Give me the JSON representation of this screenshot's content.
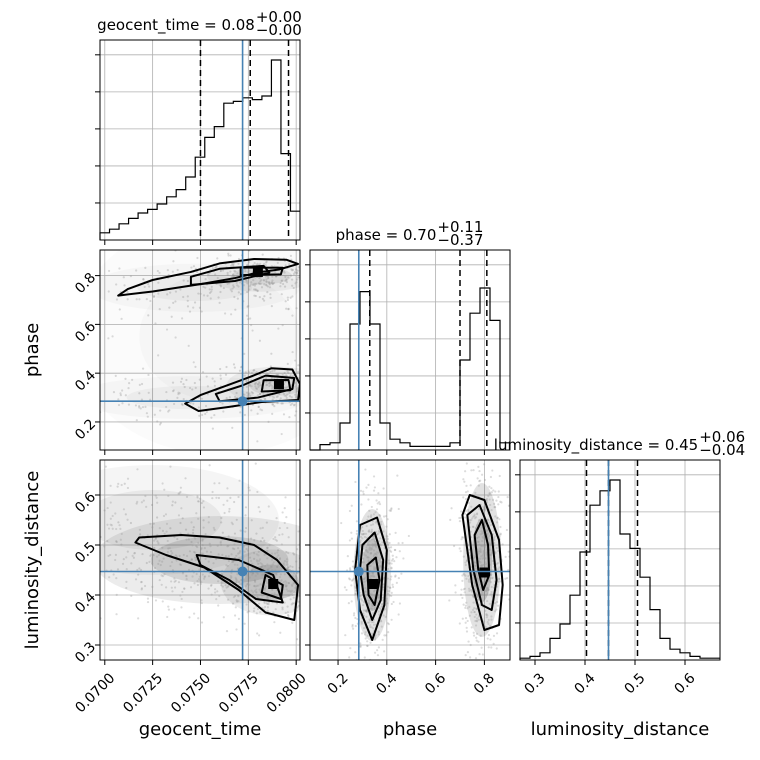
{
  "chart_data": {
    "type": "corner",
    "parameters": [
      {
        "name": "geocent_time",
        "axis_label": "geocent_time",
        "title_text": "geocent_time = 0.08",
        "title_sup": "+0.00",
        "title_sub": "−0.00",
        "range": [
          0.06975,
          0.0802
        ],
        "ticks": [
          0.07,
          0.0725,
          0.075,
          0.0775,
          0.08
        ],
        "tick_labels": [
          "0.0700",
          "0.0725",
          "0.0750",
          "0.0775",
          "0.0800"
        ],
        "truth": 0.0772,
        "quantiles": [
          0.075,
          0.0776,
          0.0796
        ],
        "hist": [
          0.04,
          0.06,
          0.09,
          0.12,
          0.15,
          0.17,
          0.2,
          0.24,
          0.28,
          0.35,
          0.46,
          0.57,
          0.63,
          0.76,
          0.77,
          0.79,
          0.78,
          0.8,
          1.0,
          0.48,
          0.16
        ]
      },
      {
        "name": "phase",
        "axis_label": "phase",
        "title_text": "phase = 0.70",
        "title_sup": "+0.11",
        "title_sub": "−0.37",
        "range": [
          0.085,
          0.905
        ],
        "ticks": [
          0.2,
          0.4,
          0.6,
          0.8
        ],
        "tick_labels": [
          "0.2",
          "0.4",
          "0.6",
          "0.8"
        ],
        "truth": 0.285,
        "quantiles": [
          0.33,
          0.7,
          0.81
        ],
        "hist": [
          0.0,
          0.03,
          0.04,
          0.15,
          0.7,
          0.88,
          0.7,
          0.15,
          0.06,
          0.04,
          0.02,
          0.02,
          0.02,
          0.02,
          0.04,
          0.5,
          0.76,
          0.9,
          0.72,
          0.04
        ]
      },
      {
        "name": "luminosity_distance",
        "axis_label": "luminosity_distance",
        "title_text": "luminosity_distance = 0.45",
        "title_sup": "+0.06",
        "title_sub": "−0.04",
        "range": [
          0.27,
          0.67
        ],
        "ticks": [
          0.3,
          0.4,
          0.5,
          0.6
        ],
        "tick_labels": [
          "0.3",
          "0.4",
          "0.5",
          "0.6"
        ],
        "truth": 0.447,
        "quantiles": [
          0.403,
          0.447,
          0.505
        ],
        "hist": [
          0.01,
          0.02,
          0.04,
          0.12,
          0.2,
          0.36,
          0.6,
          0.86,
          0.94,
          1.0,
          0.7,
          0.62,
          0.46,
          0.28,
          0.12,
          0.06,
          0.04,
          0.02,
          0.01,
          0.01
        ]
      }
    ],
    "density_blobs": {
      "phase_vs_geocent_time": [
        {
          "x": 0.0747,
          "y": 0.75,
          "sx": 0.0025,
          "sy": 0.045,
          "w": 0.1
        },
        {
          "x": 0.0782,
          "y": 0.8,
          "sx": 0.0013,
          "sy": 0.03,
          "w": 0.2
        },
        {
          "x": 0.0745,
          "y": 0.3,
          "sx": 0.0028,
          "sy": 0.04,
          "w": 0.1
        },
        {
          "x": 0.079,
          "y": 0.35,
          "sx": 0.0012,
          "sy": 0.035,
          "w": 0.2
        },
        {
          "x": 0.076,
          "y": 0.55,
          "sx": 0.0035,
          "sy": 0.22,
          "w": 0.06
        }
      ],
      "luminosity_distance_vs_geocent_time": [
        {
          "x": 0.076,
          "y": 0.47,
          "sx": 0.003,
          "sy": 0.04,
          "w": 0.3
        },
        {
          "x": 0.0787,
          "y": 0.425,
          "sx": 0.0012,
          "sy": 0.03,
          "w": 0.3
        },
        {
          "x": 0.0725,
          "y": 0.55,
          "sx": 0.003,
          "sy": 0.05,
          "w": 0.15
        }
      ],
      "luminosity_distance_vs_phase": [
        {
          "x": 0.34,
          "y": 0.44,
          "sx": 0.035,
          "sy": 0.06,
          "w": 0.45
        },
        {
          "x": 0.79,
          "y": 0.47,
          "sx": 0.035,
          "sy": 0.07,
          "w": 0.45
        }
      ]
    },
    "contours": {
      "phase_vs_geocent_time": [
        [
          [
            0.0707,
            0.718
          ],
          [
            0.0725,
            0.735
          ],
          [
            0.075,
            0.765
          ],
          [
            0.0768,
            0.79
          ],
          [
            0.078,
            0.813
          ],
          [
            0.0791,
            0.825
          ],
          [
            0.0801,
            0.848
          ],
          [
            0.0795,
            0.865
          ],
          [
            0.0778,
            0.868
          ],
          [
            0.076,
            0.85
          ],
          [
            0.0745,
            0.815
          ],
          [
            0.0725,
            0.782
          ],
          [
            0.0712,
            0.745
          ]
        ],
        [
          [
            0.0745,
            0.762
          ],
          [
            0.0768,
            0.778
          ],
          [
            0.0786,
            0.812
          ],
          [
            0.0783,
            0.84
          ],
          [
            0.076,
            0.828
          ],
          [
            0.0745,
            0.795
          ]
        ],
        [
          [
            0.0771,
            0.802
          ],
          [
            0.0792,
            0.805
          ],
          [
            0.0793,
            0.832
          ],
          [
            0.0771,
            0.833
          ]
        ],
        [
          [
            0.0749,
            0.245
          ],
          [
            0.0765,
            0.262
          ],
          [
            0.0782,
            0.282
          ],
          [
            0.0801,
            0.29
          ],
          [
            0.0802,
            0.355
          ],
          [
            0.0798,
            0.415
          ],
          [
            0.0787,
            0.42
          ],
          [
            0.0776,
            0.385
          ],
          [
            0.0764,
            0.35
          ],
          [
            0.075,
            0.31
          ],
          [
            0.0742,
            0.275
          ]
        ],
        [
          [
            0.076,
            0.285
          ],
          [
            0.078,
            0.3
          ],
          [
            0.0798,
            0.335
          ],
          [
            0.0799,
            0.38
          ],
          [
            0.0784,
            0.39
          ],
          [
            0.0772,
            0.35
          ],
          [
            0.0758,
            0.315
          ]
        ],
        [
          [
            0.0782,
            0.325
          ],
          [
            0.0797,
            0.33
          ],
          [
            0.0796,
            0.372
          ],
          [
            0.0783,
            0.371
          ]
        ]
      ],
      "luminosity_distance_vs_geocent_time": [
        [
          [
            0.0718,
            0.515
          ],
          [
            0.074,
            0.52
          ],
          [
            0.076,
            0.515
          ],
          [
            0.0778,
            0.5
          ],
          [
            0.079,
            0.47
          ],
          [
            0.0801,
            0.42
          ],
          [
            0.0799,
            0.35
          ],
          [
            0.0784,
            0.365
          ],
          [
            0.077,
            0.41
          ],
          [
            0.0752,
            0.455
          ],
          [
            0.0732,
            0.48
          ],
          [
            0.0716,
            0.505
          ]
        ],
        [
          [
            0.0748,
            0.48
          ],
          [
            0.077,
            0.47
          ],
          [
            0.0788,
            0.44
          ],
          [
            0.0793,
            0.385
          ],
          [
            0.0779,
            0.392
          ],
          [
            0.0765,
            0.43
          ],
          [
            0.075,
            0.46
          ]
        ],
        [
          [
            0.0784,
            0.44
          ],
          [
            0.0793,
            0.42
          ],
          [
            0.0792,
            0.392
          ],
          [
            0.0782,
            0.405
          ]
        ]
      ],
      "luminosity_distance_vs_phase": [
        [
          [
            0.29,
            0.54
          ],
          [
            0.36,
            0.555
          ],
          [
            0.4,
            0.49
          ],
          [
            0.39,
            0.38
          ],
          [
            0.34,
            0.31
          ],
          [
            0.29,
            0.37
          ],
          [
            0.27,
            0.45
          ]
        ],
        [
          [
            0.3,
            0.5
          ],
          [
            0.35,
            0.525
          ],
          [
            0.385,
            0.47
          ],
          [
            0.375,
            0.39
          ],
          [
            0.34,
            0.35
          ],
          [
            0.305,
            0.4
          ],
          [
            0.29,
            0.45
          ]
        ],
        [
          [
            0.32,
            0.46
          ],
          [
            0.355,
            0.475
          ],
          [
            0.37,
            0.43
          ],
          [
            0.35,
            0.38
          ],
          [
            0.325,
            0.4
          ]
        ],
        [
          [
            0.71,
            0.56
          ],
          [
            0.74,
            0.6
          ],
          [
            0.8,
            0.59
          ],
          [
            0.86,
            0.51
          ],
          [
            0.875,
            0.42
          ],
          [
            0.86,
            0.34
          ],
          [
            0.8,
            0.33
          ],
          [
            0.75,
            0.42
          ]
        ],
        [
          [
            0.73,
            0.56
          ],
          [
            0.78,
            0.58
          ],
          [
            0.83,
            0.52
          ],
          [
            0.85,
            0.43
          ],
          [
            0.83,
            0.37
          ],
          [
            0.79,
            0.38
          ],
          [
            0.755,
            0.45
          ]
        ],
        [
          [
            0.76,
            0.52
          ],
          [
            0.79,
            0.55
          ],
          [
            0.815,
            0.5
          ],
          [
            0.82,
            0.44
          ],
          [
            0.795,
            0.41
          ],
          [
            0.775,
            0.45
          ]
        ]
      ]
    },
    "peak_markers": {
      "phase_vs_geocent_time": [
        [
          0.078,
          0.815
        ],
        [
          0.0791,
          0.355
        ]
      ],
      "luminosity_distance_vs_geocent_time": [
        [
          0.0788,
          0.422
        ]
      ],
      "luminosity_distance_vs_phase": [
        [
          0.345,
          0.422
        ],
        [
          0.8,
          0.445
        ]
      ]
    }
  }
}
